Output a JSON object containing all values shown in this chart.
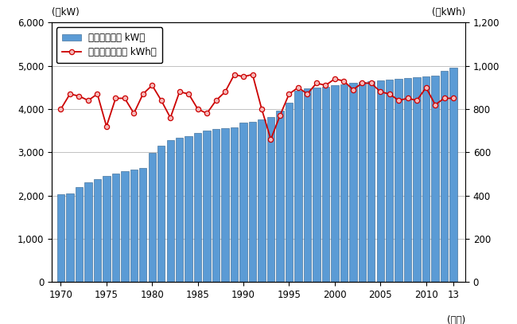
{
  "years": [
    1970,
    1971,
    1972,
    1973,
    1974,
    1975,
    1976,
    1977,
    1978,
    1979,
    1980,
    1981,
    1982,
    1983,
    1984,
    1985,
    1986,
    1987,
    1988,
    1989,
    1990,
    1991,
    1992,
    1993,
    1994,
    1995,
    1996,
    1997,
    1998,
    1999,
    2000,
    2001,
    2002,
    2003,
    2004,
    2005,
    2006,
    2007,
    2008,
    2009,
    2010,
    2011,
    2012,
    2013
  ],
  "capacity": [
    2020,
    2050,
    2200,
    2300,
    2380,
    2450,
    2510,
    2560,
    2600,
    2640,
    2980,
    3150,
    3280,
    3330,
    3380,
    3440,
    3500,
    3540,
    3560,
    3580,
    3680,
    3700,
    3760,
    3820,
    3960,
    4150,
    4420,
    4480,
    4490,
    4520,
    4560,
    4580,
    4600,
    4620,
    4640,
    4660,
    4680,
    4700,
    4720,
    4740,
    4760,
    4780,
    4880,
    4950
  ],
  "generation": [
    800,
    870,
    860,
    840,
    870,
    720,
    850,
    850,
    780,
    870,
    910,
    840,
    760,
    880,
    870,
    800,
    780,
    840,
    880,
    960,
    950,
    960,
    800,
    660,
    770,
    870,
    900,
    870,
    920,
    910,
    940,
    930,
    890,
    920,
    920,
    880,
    870,
    840,
    850,
    840,
    900,
    820,
    850,
    850
  ],
  "bar_color": "#5b9bd5",
  "bar_edge_color": "#2e5f8a",
  "line_color": "#cc0000",
  "marker_face_color": "#f5b8b8",
  "marker_edge_color": "#cc0000",
  "ylabel_left": "(万kW)",
  "ylabel_right": "(億kWh)",
  "xlabel_note": "(年度)",
  "legend_bar": "設備容量（万 kW）",
  "legend_line": "発電電力量（億 kWh）",
  "ylim_left": [
    0,
    6000
  ],
  "ylim_right": [
    0,
    1200
  ],
  "yticks_left": [
    0,
    1000,
    2000,
    3000,
    4000,
    5000,
    6000
  ],
  "ytick_labels_left": [
    "0",
    "1,000",
    "2,000",
    "3,000",
    "4,000",
    "5,000",
    "6,000"
  ],
  "yticks_right": [
    0,
    200,
    400,
    600,
    800,
    1000,
    1200
  ],
  "ytick_labels_right": [
    "0",
    "200",
    "400",
    "600",
    "800",
    "1,000",
    "1,200"
  ],
  "xtick_positions": [
    1970,
    1975,
    1980,
    1985,
    1990,
    1995,
    2000,
    2005,
    2010,
    2013
  ],
  "xtick_labels": [
    "1970",
    "1975",
    "1980",
    "1985",
    "1990",
    "1995",
    "2000",
    "2005",
    "2010",
    "13"
  ],
  "xlim": [
    1969.0,
    2014.3
  ],
  "background_color": "#ffffff"
}
